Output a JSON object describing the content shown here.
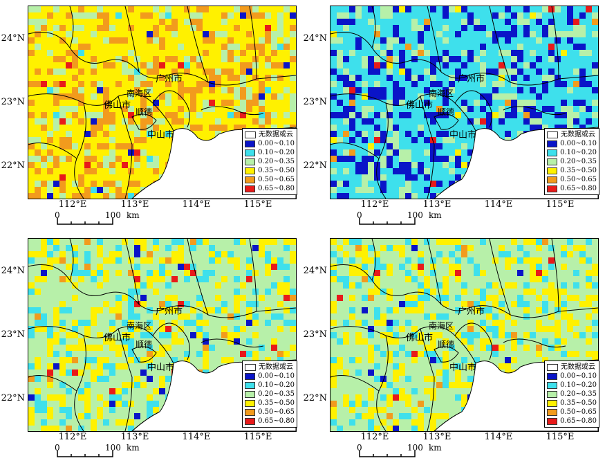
{
  "lat_labels": [
    "24°N",
    "23°N",
    "22°N"
  ],
  "lon_labels": [
    "112°E",
    "113°E",
    "114°E",
    "115°E"
  ],
  "scale_bar": {
    "zero": "0",
    "hundred": "100",
    "unit": "km"
  },
  "cities": {
    "guangzhou": "广州市",
    "nanhai": "南海区",
    "foshan": "佛山市",
    "shunde": "顺德",
    "zhongshan": "中山市"
  },
  "legend": [
    {
      "label": "无数据或云",
      "color": "#ffffff"
    },
    {
      "label": "0.00~0.10",
      "color": "#0a14c8"
    },
    {
      "label": "0.10~0.20",
      "color": "#3ee0ec"
    },
    {
      "label": "0.20~0.35",
      "color": "#b7f0a9"
    },
    {
      "label": "0.35~0.50",
      "color": "#fff100"
    },
    {
      "label": "0.50~0.65",
      "color": "#f29b1d"
    },
    {
      "label": "0.65~0.80",
      "color": "#e81a1a"
    }
  ],
  "panels": [
    {
      "dominant_classes": [
        "0.35~0.50",
        "0.50~0.65",
        "0.20~0.35"
      ]
    },
    {
      "dominant_classes": [
        "0.10~0.20",
        "0.00~0.10",
        "0.20~0.35"
      ]
    },
    {
      "dominant_classes": [
        "0.20~0.35",
        "0.35~0.50",
        "0.10~0.20"
      ]
    },
    {
      "dominant_classes": [
        "0.20~0.35",
        "0.35~0.50",
        "0.10~0.20"
      ]
    }
  ]
}
